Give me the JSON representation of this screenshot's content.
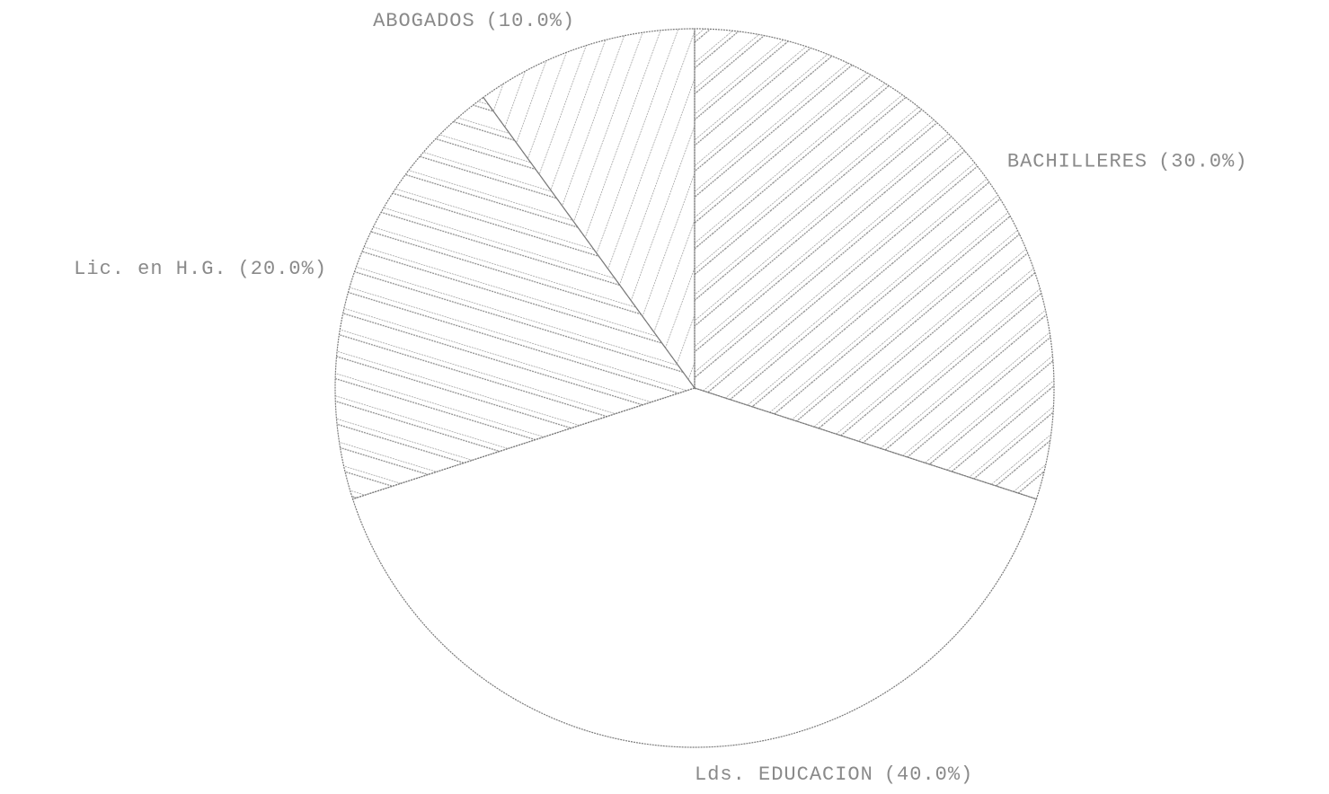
{
  "chart_data": {
    "type": "pie",
    "categories": [
      "BACHILLERES",
      "Lds. EDUCACION",
      "Lic. en H.G.",
      "ABOGADOS"
    ],
    "values": [
      30,
      40,
      20,
      10
    ],
    "value_labels": [
      "(30.0%)",
      "(40.0%)",
      "(20.0%)",
      "(10.0%)"
    ]
  }
}
